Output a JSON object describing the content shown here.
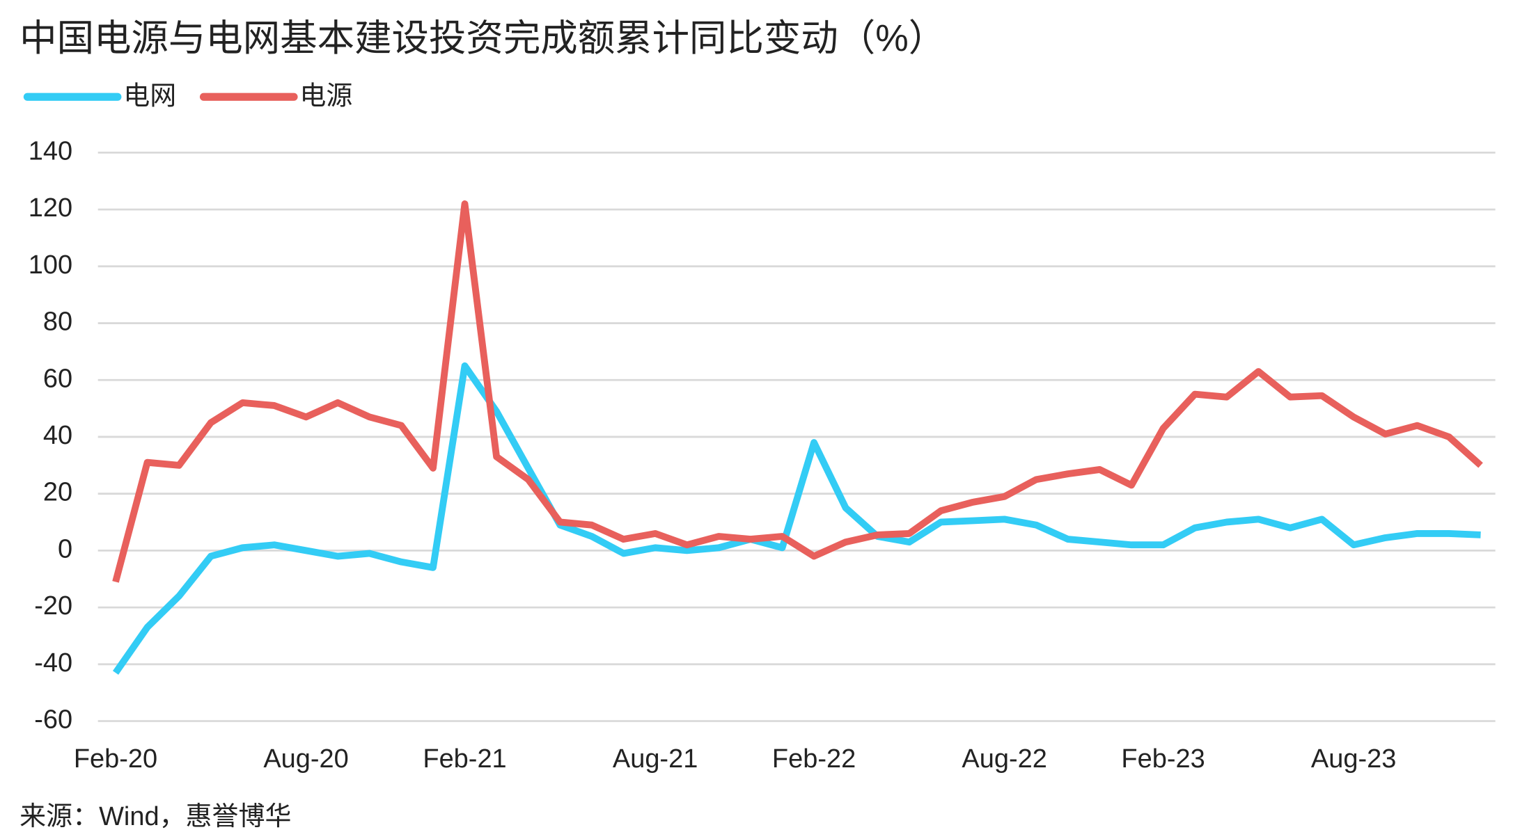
{
  "chart_data": {
    "type": "line",
    "title": "中国电源与电网基本建设投资完成额累计同比变动（%）",
    "source": "来源：Wind，惠誉博华",
    "categories": [
      "Feb-20",
      null,
      null,
      null,
      null,
      null,
      "Aug-20",
      null,
      null,
      null,
      null,
      "Feb-21",
      null,
      null,
      null,
      null,
      null,
      "Aug-21",
      null,
      null,
      null,
      null,
      "Feb-22",
      null,
      null,
      null,
      null,
      null,
      "Aug-22",
      null,
      null,
      null,
      null,
      "Feb-23",
      null,
      null,
      null,
      null,
      null,
      "Aug-23",
      null,
      null,
      null,
      null
    ],
    "series": [
      {
        "name": "电网",
        "color": "#33ccf5",
        "values": [
          -43,
          -27,
          -16,
          -2,
          1,
          2,
          0,
          -2,
          -1,
          -4,
          -6,
          65,
          49,
          29,
          9,
          5,
          -1,
          1,
          0,
          1,
          4,
          1,
          38,
          15,
          5,
          3,
          10,
          10.5,
          11,
          9,
          4,
          3,
          2,
          2,
          8,
          10,
          11,
          8,
          11,
          2,
          4.5,
          6,
          6,
          5.5
        ]
      },
      {
        "name": "电源",
        "color": "#e8605c",
        "values": [
          -11,
          31,
          30,
          45,
          52,
          51,
          47,
          52,
          47,
          44,
          29,
          122,
          33,
          25,
          10,
          9,
          4,
          6,
          2,
          5,
          4,
          5,
          -2,
          3,
          5.5,
          6,
          14,
          17,
          19,
          25,
          27,
          28.5,
          23,
          43,
          55,
          54,
          63,
          54,
          54.5,
          47,
          41,
          44,
          40,
          30
        ]
      }
    ],
    "ylim": [
      -60,
      140
    ],
    "yticks": [
      -60,
      -40,
      -20,
      0,
      20,
      40,
      60,
      80,
      100,
      120,
      140
    ],
    "grid": true,
    "legend": "top-left"
  }
}
